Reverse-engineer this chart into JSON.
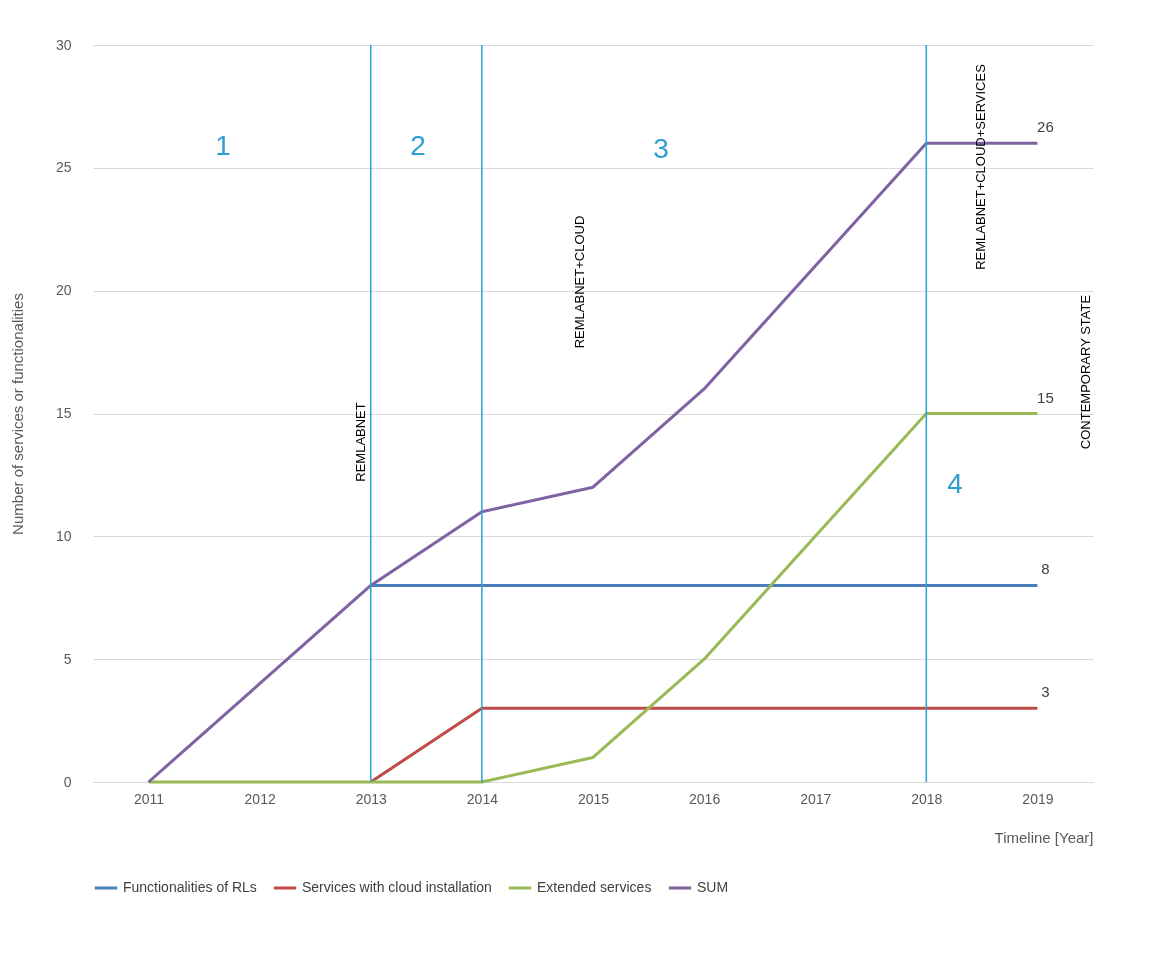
{
  "chart_data": {
    "type": "line",
    "xlabel": "Timeline [Year]",
    "ylabel": "Number of services or functionalities",
    "categories": [
      "2011",
      "2012",
      "2013",
      "2014",
      "2015",
      "2016",
      "2017",
      "2018",
      "2019"
    ],
    "series": [
      {
        "name": "Functionalities of RLs",
        "color": "#4a7ebb",
        "values": [
          null,
          null,
          8,
          8,
          8,
          8,
          8,
          8,
          8
        ],
        "value_labels": [
          null,
          null,
          null,
          null,
          null,
          null,
          null,
          null,
          "8"
        ]
      },
      {
        "name": "Services with cloud installation",
        "color": "#be4b48",
        "values": [
          null,
          null,
          0,
          3,
          3,
          3,
          3,
          3,
          3
        ],
        "value_labels": [
          null,
          null,
          null,
          null,
          null,
          null,
          null,
          null,
          "3"
        ]
      },
      {
        "name": "Extended services",
        "color": "#98b954",
        "values": [
          0,
          0,
          0,
          0,
          1,
          5,
          10,
          15,
          15
        ],
        "value_labels": [
          null,
          null,
          null,
          null,
          null,
          null,
          null,
          null,
          "15"
        ]
      },
      {
        "name": "SUM",
        "color": "#7e62a1",
        "values": [
          0,
          4,
          8,
          11,
          12,
          16,
          21,
          26,
          26
        ],
        "value_labels": [
          null,
          null,
          null,
          null,
          null,
          null,
          null,
          null,
          "26"
        ]
      }
    ],
    "ylim": [
      0,
      30
    ],
    "yticks": [
      0,
      5,
      10,
      15,
      20,
      25,
      30
    ],
    "grid": "y",
    "legend": "bottom",
    "line_style": "solid",
    "marker": "none",
    "ref_lines": [
      {
        "axis": "x",
        "value": "2013",
        "color": "#29a3d6"
      },
      {
        "axis": "x",
        "value": "2014",
        "color": "#29a3d6"
      },
      {
        "axis": "x",
        "value": "2018",
        "color": "#29a3d6"
      }
    ],
    "annotations": [
      "1",
      "2",
      "3",
      "4",
      "REMLABNET",
      "REMLABNET+CLOUD",
      "REMLABNET+CLOUD+SERVICES",
      "CONTEMPORARY STATE"
    ]
  }
}
